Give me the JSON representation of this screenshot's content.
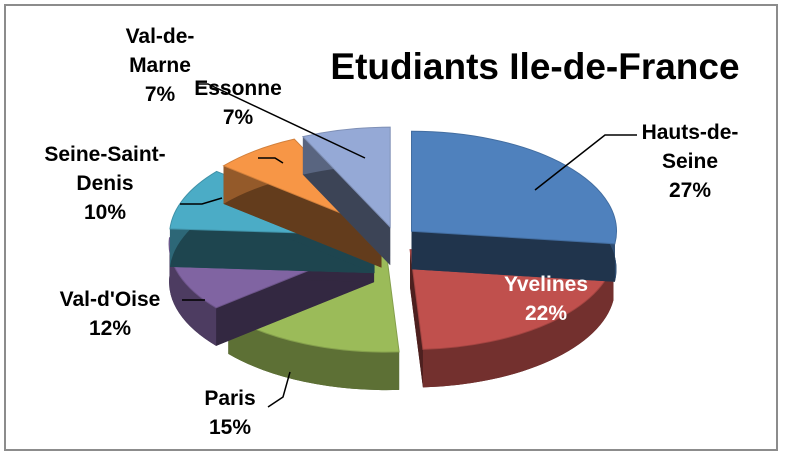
{
  "chart_data": {
    "type": "pie",
    "title": "Etudiants Ile-de-France",
    "categories": [
      "Hauts-de-Seine",
      "Yvelines",
      "Paris",
      "Val-d'Oise",
      "Seine-Saint-Denis",
      "Essonne",
      "Val-de-Marne"
    ],
    "values": [
      27,
      22,
      15,
      12,
      10,
      7,
      7
    ],
    "value_labels": [
      "27%",
      "22%",
      "15%",
      "12%",
      "10%",
      "7%",
      "7%"
    ],
    "colors": [
      "#4f81bd",
      "#c0504d",
      "#9bbb59",
      "#8064a2",
      "#4bacc6",
      "#f79646",
      "#95a9d6"
    ]
  }
}
